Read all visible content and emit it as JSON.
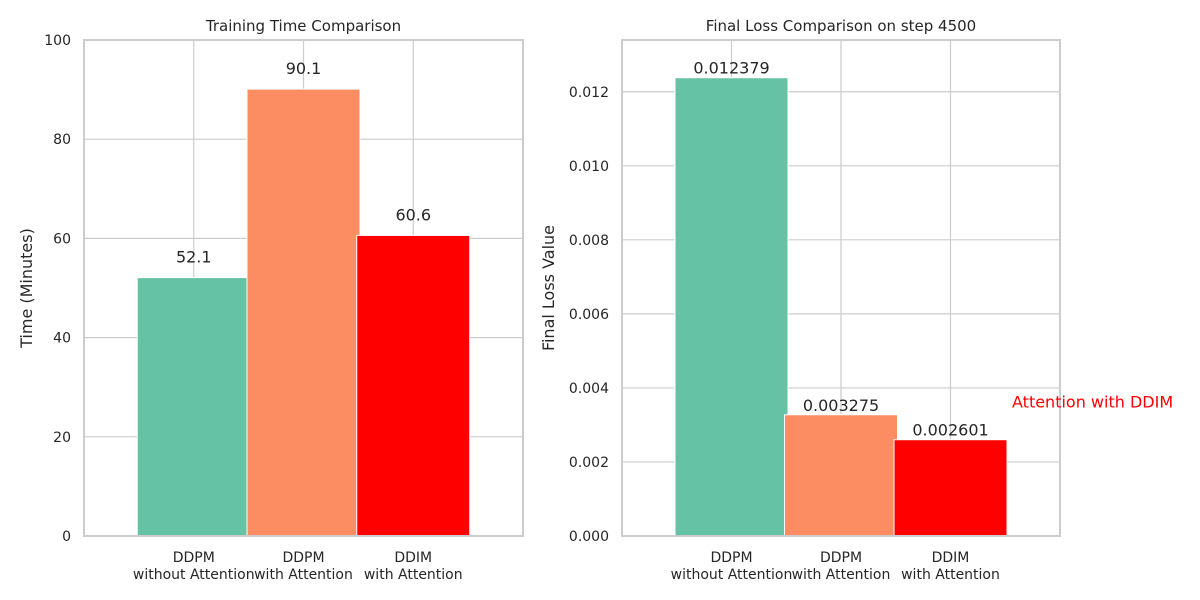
{
  "chart_data": [
    {
      "type": "bar",
      "title": "Training Time Comparison",
      "xlabel": "",
      "ylabel": "Time (Minutes)",
      "categories": [
        [
          "DDPM",
          "without Attention"
        ],
        [
          "DDPM",
          "with Attention"
        ],
        [
          "DDIM",
          "with Attention"
        ]
      ],
      "values": [
        52.1,
        90.1,
        60.6
      ],
      "value_labels": [
        "52.1",
        "90.1",
        "60.6"
      ],
      "colors": [
        "#66c2a5",
        "#fc8d62",
        "#ff0000"
      ],
      "ylim": [
        0,
        100
      ],
      "yticks": [
        0,
        20,
        40,
        60,
        80,
        100
      ],
      "ytick_labels": [
        "0",
        "20",
        "40",
        "60",
        "80",
        "100"
      ],
      "grid": true
    },
    {
      "type": "bar",
      "title": "Final Loss Comparison on step 4500",
      "xlabel": "",
      "ylabel": "Final Loss Value",
      "categories": [
        [
          "DDPM",
          "without Attention"
        ],
        [
          "DDPM",
          "with Attention"
        ],
        [
          "DDIM",
          "with Attention"
        ]
      ],
      "values": [
        0.012379,
        0.003275,
        0.002601
      ],
      "value_labels": [
        "0.012379",
        "0.003275",
        "0.002601"
      ],
      "colors": [
        "#66c2a5",
        "#fc8d62",
        "#ff0000"
      ],
      "ylim": [
        0,
        0.013398
      ],
      "yticks": [
        0,
        0.002,
        0.004,
        0.006,
        0.008,
        0.01,
        0.012
      ],
      "ytick_labels": [
        "0.000",
        "0.002",
        "0.004",
        "0.006",
        "0.008",
        "0.010",
        "0.012"
      ],
      "grid": true,
      "annotation": {
        "text": "Attention with DDIM",
        "color": "#ff0000",
        "y": 0.0036
      }
    }
  ]
}
